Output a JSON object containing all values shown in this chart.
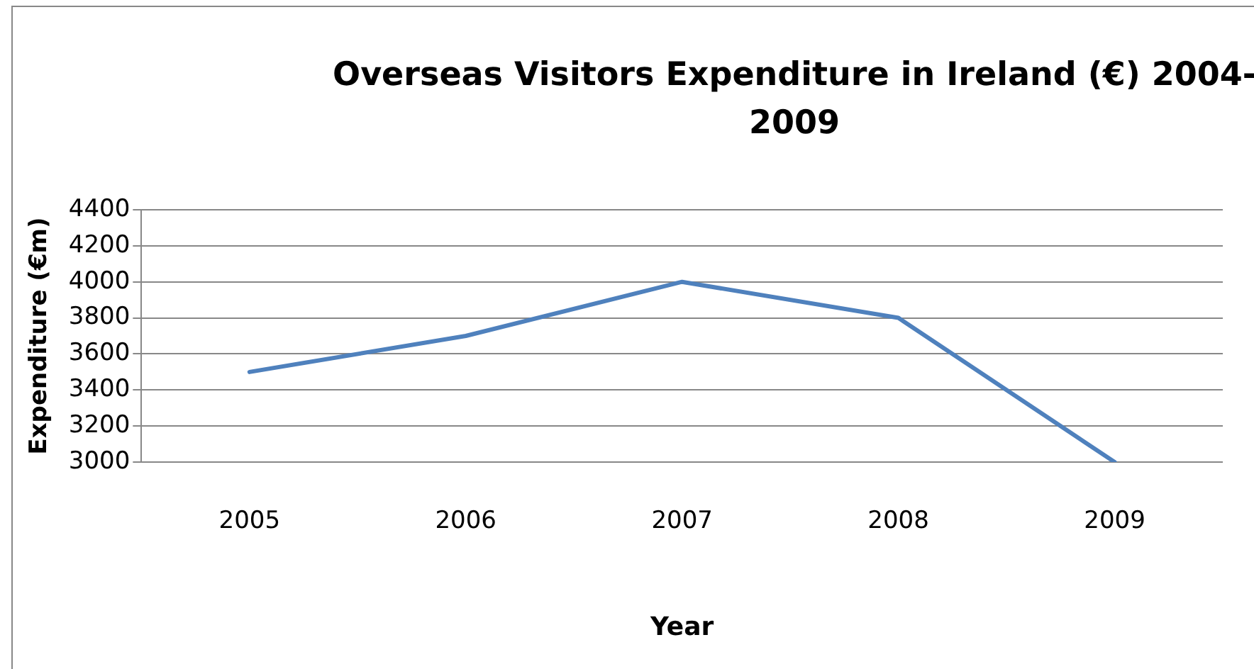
{
  "chart_data": {
    "type": "line",
    "title": "Overseas Visitors Expenditure in Ireland (€) 2004-2009",
    "xlabel": "Year",
    "ylabel": "Expenditure (€m)",
    "categories": [
      "2005",
      "2006",
      "2007",
      "2008",
      "2009"
    ],
    "series": [
      {
        "color": "#4f81bd",
        "values": [
          3500,
          3700,
          4000,
          3800,
          3000
        ]
      }
    ],
    "ylim": [
      3000,
      4400
    ],
    "yticks": [
      3000,
      3200,
      3400,
      3600,
      3800,
      4000,
      4200,
      4400
    ],
    "grid": "y",
    "legend": false,
    "marker": "none",
    "line_style": "solid"
  }
}
